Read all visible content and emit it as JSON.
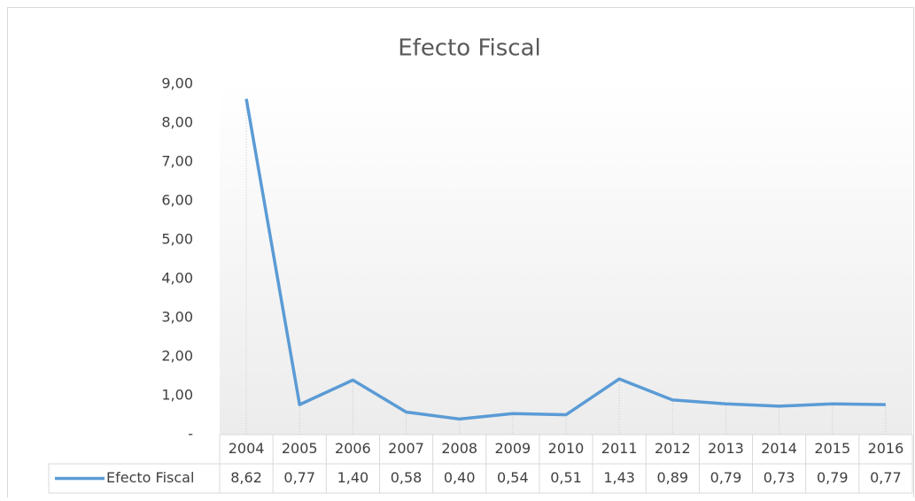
{
  "chart_data": {
    "type": "line",
    "title": "Efecto Fiscal",
    "categories": [
      "2004",
      "2005",
      "2006",
      "2007",
      "2008",
      "2009",
      "2010",
      "2011",
      "2012",
      "2013",
      "2014",
      "2015",
      "2016"
    ],
    "series": [
      {
        "name": "Efecto Fiscal",
        "color": "#5b9bd5",
        "values": [
          8.62,
          0.77,
          1.4,
          0.58,
          0.4,
          0.54,
          0.51,
          1.43,
          0.89,
          0.79,
          0.73,
          0.79,
          0.77
        ],
        "value_labels": [
          "8,62",
          "0,77",
          "1,40",
          "0,58",
          "0,40",
          "0,54",
          "0,51",
          "1,43",
          "0,89",
          "0,79",
          "0,73",
          "0,79",
          "0,77"
        ]
      }
    ],
    "ylim": [
      0,
      9
    ],
    "yticks": [
      {
        "value": 0,
        "label": "-"
      },
      {
        "value": 1,
        "label": "1,00"
      },
      {
        "value": 2,
        "label": "2,00"
      },
      {
        "value": 3,
        "label": "3,00"
      },
      {
        "value": 4,
        "label": "4,00"
      },
      {
        "value": 5,
        "label": "5,00"
      },
      {
        "value": 6,
        "label": "6,00"
      },
      {
        "value": 7,
        "label": "7,00"
      },
      {
        "value": 8,
        "label": "8,00"
      },
      {
        "value": 9,
        "label": "9,00"
      }
    ],
    "drop_lines": true
  }
}
